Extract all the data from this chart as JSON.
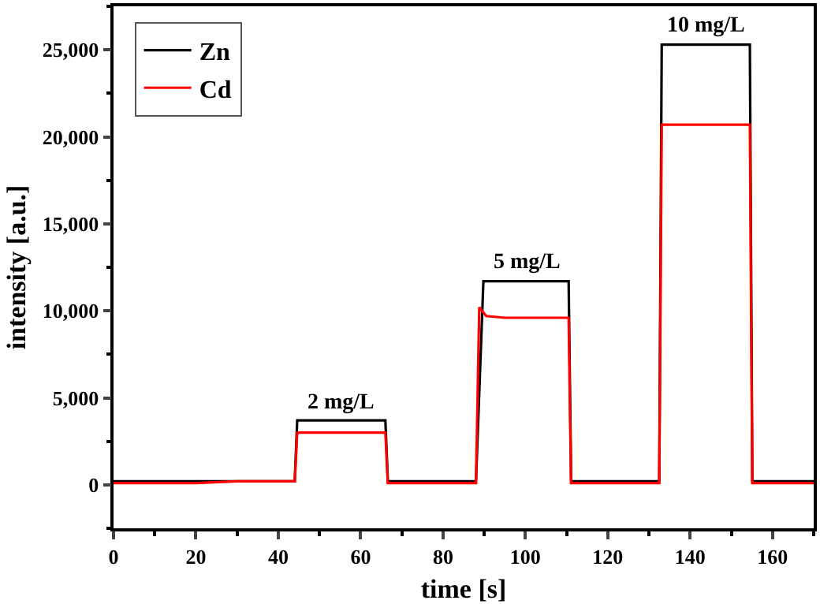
{
  "chart_data": {
    "type": "line",
    "xlabel": "time [s]",
    "ylabel": "intensity [a.u.]",
    "xlim": [
      0,
      170
    ],
    "xticks": [
      0,
      20,
      40,
      60,
      80,
      100,
      120,
      140,
      160
    ],
    "ylim": [
      -2500,
      27500
    ],
    "yticks": [
      {
        "value": 0,
        "label": "0"
      },
      {
        "value": 5000,
        "label": "5,000"
      },
      {
        "value": 10000,
        "label": "10,000"
      },
      {
        "value": 15000,
        "label": "15,000"
      },
      {
        "value": 20000,
        "label": "20,000"
      },
      {
        "value": 25000,
        "label": "25,000"
      }
    ],
    "legend": "top left",
    "marker": "none",
    "line_style": "solid",
    "series": [
      {
        "name": "Zn",
        "color": "#000000",
        "x": [
          0,
          5,
          10,
          20,
          30,
          44,
          44.6,
          50,
          60,
          66,
          66.6,
          75,
          88,
          89.8,
          95,
          105,
          110.5,
          111.1,
          120,
          132.5,
          133.1,
          140,
          150,
          154.5,
          155.1,
          165,
          170
        ],
        "values": [
          200,
          200,
          200,
          200,
          200,
          200,
          3700,
          3700,
          3700,
          3700,
          200,
          200,
          200,
          11700,
          11700,
          11700,
          11700,
          200,
          200,
          200,
          25300,
          25300,
          25300,
          25300,
          200,
          200,
          200
        ]
      },
      {
        "name": "Cd",
        "color": "#ff0000",
        "x": [
          0,
          5,
          10,
          20,
          30,
          44,
          44.6,
          50,
          60,
          66,
          66.6,
          75,
          88,
          88.8,
          90.5,
          95,
          105,
          110.5,
          111.1,
          120,
          132.5,
          133.1,
          140,
          150,
          154.5,
          155.1,
          165,
          170
        ],
        "values": [
          100,
          100,
          100,
          100,
          200,
          200,
          3000,
          3000,
          3000,
          3000,
          100,
          100,
          100,
          10200,
          9700,
          9600,
          9600,
          9600,
          100,
          100,
          100,
          20700,
          20700,
          20700,
          20700,
          100,
          100,
          100
        ]
      }
    ],
    "annotations": [
      "2 mg/L",
      "5 mg/L",
      "10 mg/L"
    ]
  }
}
